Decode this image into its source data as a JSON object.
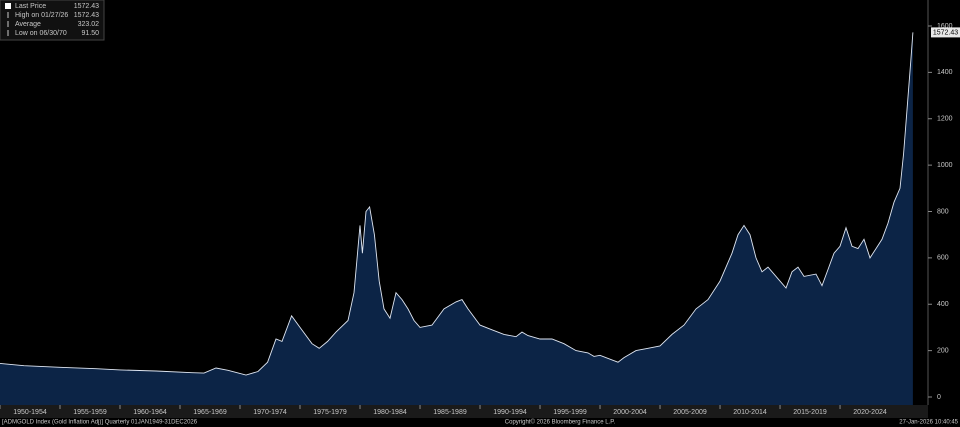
{
  "chart_data": {
    "type": "area",
    "footer_left": "[ADMGOLD Index (Gold Inflation Adj)] Quarterly 01JAN1949-31DEC2026",
    "footer_center": "Copyright© 2026 Bloomberg Finance L.P.",
    "footer_right": "27-Jan-2026 10:40:45",
    "legend": [
      {
        "label": "Last Price",
        "value": "1572.43"
      },
      {
        "label": "High on 01/27/26",
        "value": "1572.43"
      },
      {
        "label": "Average",
        "value": "323.02"
      },
      {
        "label": "Low on 06/30/70",
        "value": "91.50"
      }
    ],
    "series": [
      {
        "color": "#dfe6f2",
        "fill": "#0c2446",
        "x": [
          1950,
          1952,
          1955,
          1958,
          1960,
          1963,
          1966,
          1967,
          1968,
          1969,
          1970.5,
          1971.5,
          1972.3,
          1973,
          1973.5,
          1974.3,
          1975,
          1976,
          1976.6,
          1977.3,
          1978,
          1979,
          1979.5,
          1980,
          1980.2,
          1980.5,
          1980.8,
          1981.2,
          1981.6,
          1982,
          1982.5,
          1983,
          1983.5,
          1984,
          1984.5,
          1985,
          1986,
          1987,
          1988,
          1988.5,
          1989,
          1990,
          1991,
          1992,
          1993,
          1993.5,
          1994,
          1995,
          1996,
          1997,
          1998,
          1999,
          1999.5,
          2000,
          2001,
          2001.5,
          2002,
          2003,
          2004,
          2005,
          2006,
          2007,
          2008,
          2008.5,
          2009,
          2010,
          2011,
          2011.5,
          2012,
          2012.5,
          2013,
          2013.5,
          2014,
          2015,
          2015.5,
          2016,
          2016.5,
          2017,
          2018,
          2018.5,
          2019,
          2019.5,
          2020,
          2020.5,
          2021,
          2021.5,
          2022,
          2022.5,
          2023,
          2023.5,
          2024,
          2024.5,
          2025,
          2025.3,
          2025.6,
          2025.9,
          2026.07
        ],
        "values": [
          145,
          135,
          128,
          122,
          117,
          112,
          105,
          103,
          125,
          115,
          95,
          110,
          150,
          250,
          240,
          350,
          300,
          230,
          210,
          240,
          280,
          330,
          450,
          740,
          620,
          800,
          820,
          700,
          500,
          380,
          340,
          450,
          420,
          380,
          330,
          300,
          310,
          380,
          410,
          420,
          380,
          310,
          290,
          270,
          260,
          280,
          265,
          250,
          250,
          230,
          200,
          190,
          175,
          180,
          160,
          150,
          170,
          200,
          210,
          220,
          270,
          310,
          380,
          400,
          420,
          500,
          620,
          700,
          740,
          700,
          600,
          540,
          560,
          500,
          470,
          540,
          560,
          520,
          530,
          480,
          550,
          620,
          650,
          730,
          650,
          640,
          680,
          600,
          640,
          680,
          750,
          840,
          900,
          1050,
          1250,
          1450,
          1572.43
        ]
      }
    ],
    "xlim": [
      1950,
      2027.33
    ],
    "ylim": [
      0,
      1600
    ],
    "xticks": [
      {
        "value": 1950,
        "label": "1950-1954"
      },
      {
        "value": 1955,
        "label": "1955-1959"
      },
      {
        "value": 1960,
        "label": "1960-1964"
      },
      {
        "value": 1965,
        "label": "1965-1969"
      },
      {
        "value": 1970,
        "label": "1970-1974"
      },
      {
        "value": 1975,
        "label": "1975-1979"
      },
      {
        "value": 1980,
        "label": "1980-1984"
      },
      {
        "value": 1985,
        "label": "1985-1989"
      },
      {
        "value": 1990,
        "label": "1990-1994"
      },
      {
        "value": 1995,
        "label": "1995-1999"
      },
      {
        "value": 2000,
        "label": "2000-2004"
      },
      {
        "value": 2005,
        "label": "2005-2009"
      },
      {
        "value": 2010,
        "label": "2010-2014"
      },
      {
        "value": 2015,
        "label": "2015-2019"
      },
      {
        "value": 2020,
        "label": "2020-2024"
      }
    ],
    "yticks": [
      0,
      200,
      400,
      600,
      800,
      1000,
      1200,
      1400,
      1600
    ],
    "grid": false
  }
}
